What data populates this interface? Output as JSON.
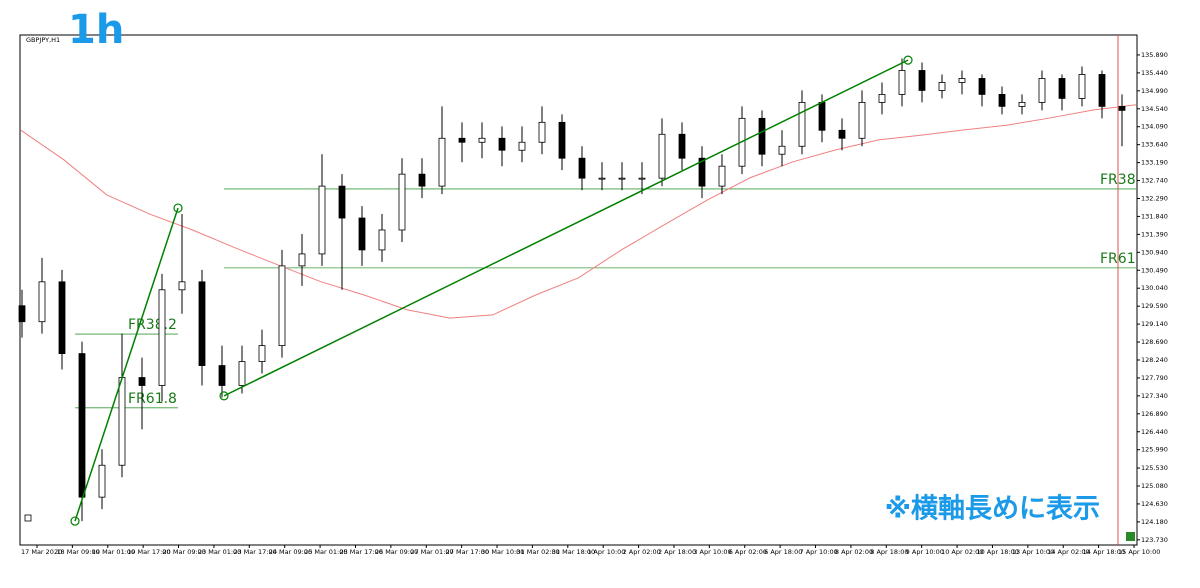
{
  "header": {
    "badge": "1h",
    "note": "※横軸長めに表示"
  },
  "chart_data": {
    "type": "candlestick",
    "symbol": "GBPJPY,H1",
    "open": [
      129.6,
      129.2,
      130.2,
      128.4,
      124.8,
      125.6,
      127.8,
      127.6,
      130.0,
      130.2,
      128.1,
      127.6,
      128.2,
      128.6,
      130.6,
      130.9,
      132.6,
      131.8,
      131.0,
      131.5,
      132.9,
      132.6,
      133.8,
      133.7,
      133.8,
      133.5,
      133.7,
      134.2,
      133.3,
      132.8,
      132.8,
      132.8,
      132.8,
      133.9,
      133.3,
      132.6,
      133.1,
      134.3,
      133.4,
      133.6,
      134.7,
      134.0,
      133.8,
      134.7,
      134.9,
      135.5,
      135.0,
      135.2,
      135.3,
      134.9,
      134.6,
      134.7,
      135.3,
      134.8,
      135.4,
      134.6
    ],
    "high": [
      130.0,
      130.8,
      130.5,
      128.7,
      126.0,
      128.9,
      128.3,
      130.4,
      131.9,
      130.5,
      128.6,
      128.6,
      129.0,
      131.0,
      131.4,
      133.4,
      132.9,
      132.1,
      131.9,
      133.3,
      133.3,
      134.6,
      134.2,
      134.2,
      134.1,
      134.1,
      134.6,
      134.4,
      133.6,
      133.2,
      133.2,
      133.2,
      134.3,
      134.2,
      133.6,
      133.4,
      134.6,
      134.5,
      134.0,
      135.0,
      134.9,
      134.3,
      135.0,
      135.2,
      135.8,
      135.7,
      135.4,
      135.5,
      135.4,
      135.1,
      134.9,
      135.5,
      135.4,
      135.6,
      135.5,
      134.9
    ],
    "low": [
      128.8,
      128.9,
      128.0,
      124.2,
      124.5,
      125.3,
      126.5,
      127.2,
      129.4,
      127.6,
      127.3,
      127.4,
      127.9,
      128.3,
      130.1,
      130.6,
      130.0,
      130.6,
      130.7,
      131.2,
      132.3,
      132.4,
      133.2,
      133.3,
      133.1,
      133.2,
      133.4,
      133.0,
      132.5,
      132.5,
      132.5,
      132.4,
      132.6,
      133.0,
      132.3,
      132.4,
      132.9,
      133.1,
      133.1,
      133.4,
      133.7,
      133.5,
      133.6,
      134.4,
      134.6,
      134.7,
      134.8,
      134.9,
      134.6,
      134.4,
      134.4,
      134.5,
      134.5,
      134.6,
      134.3,
      133.6
    ],
    "close": [
      129.2,
      130.2,
      128.4,
      124.8,
      125.6,
      127.8,
      127.6,
      130.0,
      130.2,
      128.1,
      127.6,
      128.2,
      128.6,
      130.6,
      130.9,
      132.6,
      131.8,
      131.0,
      131.5,
      132.9,
      132.6,
      133.8,
      133.7,
      133.8,
      133.5,
      133.7,
      134.2,
      133.3,
      132.8,
      132.8,
      132.8,
      132.8,
      133.9,
      133.3,
      132.6,
      133.1,
      134.3,
      133.4,
      133.6,
      134.7,
      134.0,
      133.8,
      134.7,
      134.9,
      135.5,
      135.0,
      135.2,
      135.3,
      134.9,
      134.6,
      134.7,
      135.3,
      134.8,
      135.4,
      134.6,
      134.5
    ],
    "ma": {
      "color": "#f08080",
      "values": [
        134.0,
        133.26,
        132.38,
        131.9,
        131.5,
        131.05,
        130.62,
        130.2,
        129.87,
        129.5,
        129.29,
        129.37,
        129.87,
        130.3,
        131.0,
        131.63,
        132.25,
        132.81,
        133.21,
        133.51,
        133.76,
        133.88,
        134.01,
        134.13,
        134.31,
        134.51,
        134.64
      ]
    },
    "trend_lines": [
      {
        "from": 124.2,
        "to": 132.05
      },
      {
        "from": 127.34,
        "to": 135.76
      }
    ],
    "trend_color": "#008000",
    "fib_levels": [
      {
        "label": "FR38.2",
        "value": 128.89
      },
      {
        "label": "FR61.8",
        "value": 127.04
      },
      {
        "label": "FR38",
        "value": 132.53
      },
      {
        "label": "FR61",
        "value": 130.55
      }
    ],
    "ylim": [
      123.6,
      136.39
    ],
    "yticks": [
      {
        "value": 135.89,
        "label": "135.890"
      },
      {
        "value": 135.44,
        "label": "135.440"
      },
      {
        "value": 134.99,
        "label": "134.990"
      },
      {
        "value": 134.54,
        "label": "134.540"
      },
      {
        "value": 134.09,
        "label": "134.090"
      },
      {
        "value": 133.64,
        "label": "133.640"
      },
      {
        "value": 133.19,
        "label": "133.190"
      },
      {
        "value": 132.74,
        "label": "132.740"
      },
      {
        "value": 132.29,
        "label": "132.290"
      },
      {
        "value": 131.84,
        "label": "131.840"
      },
      {
        "value": 131.39,
        "label": "131.390"
      },
      {
        "value": 130.94,
        "label": "130.940"
      },
      {
        "value": 130.49,
        "label": "130.490"
      },
      {
        "value": 130.04,
        "label": "130.040"
      },
      {
        "value": 129.59,
        "label": "129.590"
      },
      {
        "value": 129.14,
        "label": "129.140"
      },
      {
        "value": 128.69,
        "label": "128.690"
      },
      {
        "value": 128.24,
        "label": "128.240"
      },
      {
        "value": 127.79,
        "label": "127.790"
      },
      {
        "value": 127.34,
        "label": "127.340"
      },
      {
        "value": 126.89,
        "label": "126.890"
      },
      {
        "value": 126.44,
        "label": "126.440"
      },
      {
        "value": 125.99,
        "label": "125.990"
      },
      {
        "value": 125.53,
        "label": "125.530"
      },
      {
        "value": 125.08,
        "label": "125.080"
      },
      {
        "value": 124.63,
        "label": "124.630"
      },
      {
        "value": 124.18,
        "label": "124.180"
      },
      {
        "value": 123.73,
        "label": "123.730"
      }
    ],
    "x_labels": [
      "17 Mar 2020",
      "18 Mar 09:00",
      "19 Mar 01:00",
      "19 Mar 17:00",
      "20 Mar 09:00",
      "23 Mar 01:00",
      "23 Mar 17:00",
      "24 Mar 09:00",
      "25 Mar 01:00",
      "25 Mar 17:00",
      "26 Mar 09:00",
      "27 Mar 01:00",
      "27 Mar 17:00",
      "30 Mar 10:00",
      "31 Mar 02:00",
      "31 Mar 18:00",
      "1 Apr 10:00",
      "2 Apr 02:00",
      "2 Apr 18:00",
      "3 Apr 10:00",
      "6 Apr 02:00",
      "6 Apr 18:00",
      "7 Apr 10:00",
      "8 Apr 02:00",
      "8 Apr 18:00",
      "9 Apr 10:00",
      "10 Apr 02:00",
      "10 Apr 18:00",
      "13 Apr 10:00",
      "14 Apr 02:00",
      "14 Apr 18:00",
      "15 Apr 10:00"
    ]
  }
}
